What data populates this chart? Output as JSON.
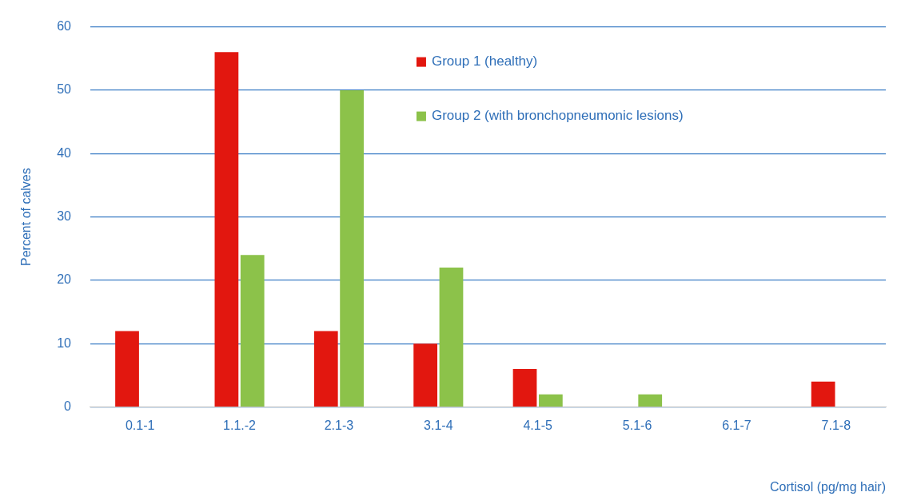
{
  "chart_data": {
    "type": "bar",
    "xlabel": "Cortisol (pg/mg hair)",
    "ylabel": "Percent of calves",
    "categories": [
      "0.1-1",
      "1.1.-2",
      "2.1-3",
      "3.1-4",
      "4.1-5",
      "5.1-6",
      "6.1-7",
      "7.1-8"
    ],
    "series": [
      {
        "name": "Group 1 (healthy)",
        "color": "#e2170f",
        "values": [
          12,
          56,
          12,
          10,
          6,
          0,
          0,
          4
        ]
      },
      {
        "name": "Group 2 (with bronchopneumonic lesions)",
        "color": "#8cc24a",
        "values": [
          0,
          24,
          50,
          22,
          2,
          2,
          0,
          0
        ]
      }
    ],
    "ylim": [
      0,
      60
    ],
    "yticks": [
      0,
      10,
      20,
      30,
      40,
      50,
      60
    ],
    "grid": "y",
    "legend": "top"
  }
}
